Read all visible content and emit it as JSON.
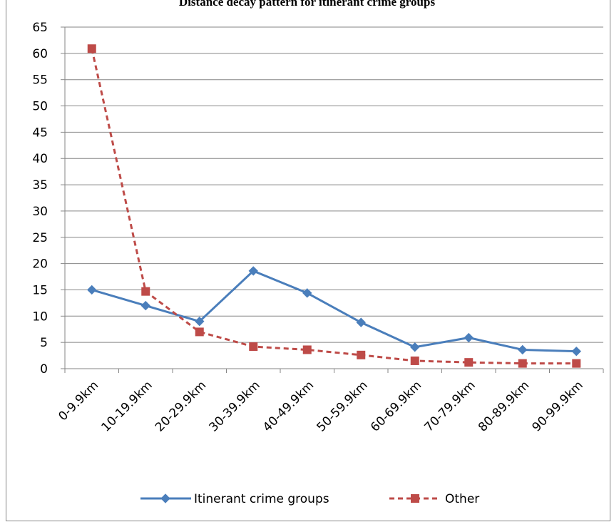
{
  "chart_data": {
    "type": "line",
    "title": "Distance decay pattern for itinerant crime groups",
    "xlabel": "",
    "ylabel": "",
    "categories": [
      "0-9.9km",
      "10-19.9km",
      "20-29.9km",
      "30-39.9km",
      "40-49.9km",
      "50-59.9km",
      "60-69.9km",
      "70-79.9km",
      "80-89.9km",
      "90-99.9km"
    ],
    "ylim": [
      0,
      65
    ],
    "yticks": [
      0,
      5,
      10,
      15,
      20,
      25,
      30,
      35,
      40,
      45,
      50,
      55,
      60,
      65
    ],
    "grid": "horizontal",
    "legend_position": "bottom",
    "series": [
      {
        "name": "Itinerant crime groups",
        "color": "#4a7ebb",
        "line_style": "solid",
        "marker": "diamond",
        "values": [
          15.0,
          12.0,
          9.0,
          18.6,
          14.4,
          8.8,
          4.1,
          5.9,
          3.6,
          3.3
        ]
      },
      {
        "name": "Other",
        "color": "#be4b48",
        "line_style": "dashed",
        "marker": "square",
        "values": [
          60.9,
          14.7,
          7.0,
          4.2,
          3.6,
          2.6,
          1.5,
          1.2,
          1.0,
          1.0
        ]
      }
    ]
  }
}
